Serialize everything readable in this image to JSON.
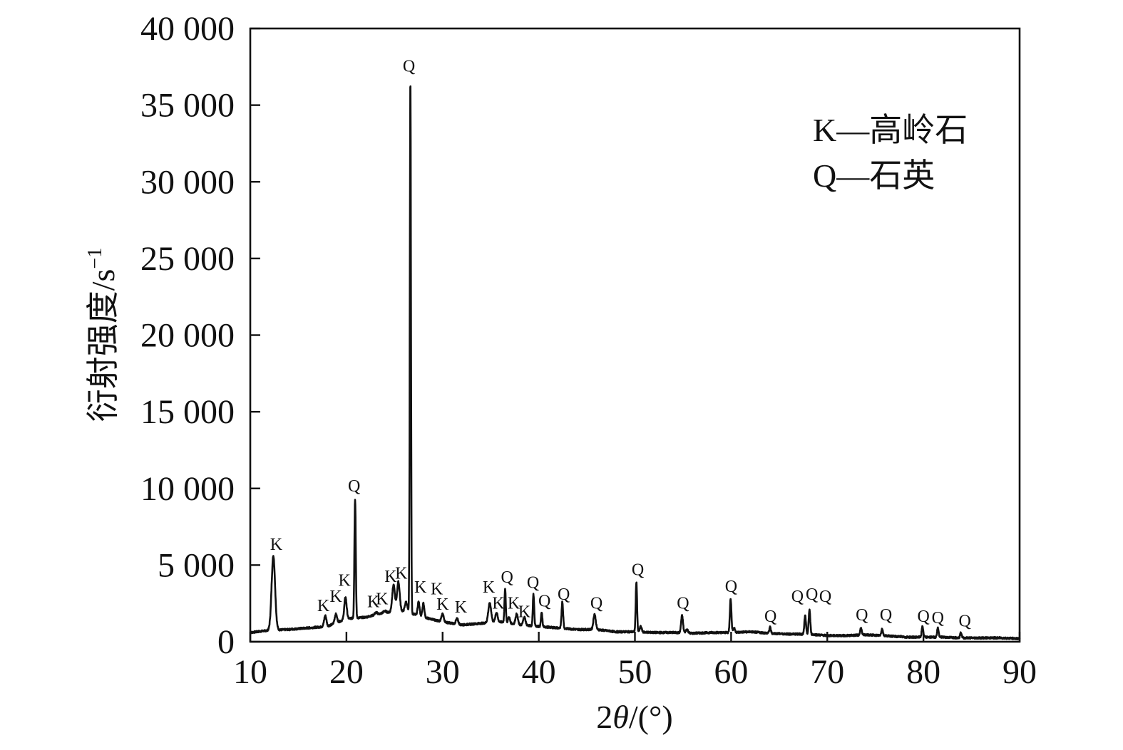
{
  "chart_data": {
    "type": "line",
    "xlabel_prefix": "2",
    "xlabel_symbol": "θ",
    "xlabel_suffix": "/(°)",
    "ylabel_main": "衍射强度/s",
    "ylabel_sup": "−1",
    "xlim": [
      10,
      90
    ],
    "ylim": [
      0,
      40000
    ],
    "x_ticks": [
      10,
      20,
      30,
      40,
      50,
      60,
      70,
      80,
      90
    ],
    "y_ticks": [
      0,
      5000,
      10000,
      15000,
      20000,
      25000,
      30000,
      35000,
      40000
    ],
    "x_tick_labels": [
      "10",
      "20",
      "30",
      "40",
      "50",
      "60",
      "70",
      "80",
      "90"
    ],
    "y_tick_labels": [
      "0",
      "5 000",
      "10 000",
      "15 000",
      "20 000",
      "25 000",
      "30 000",
      "35 000",
      "40 000"
    ],
    "grid": false,
    "legend_position": "top-right",
    "legend": [
      {
        "key": "K",
        "text": "K—高岭石"
      },
      {
        "key": "Q",
        "text": "Q—石英"
      }
    ],
    "line_color": "#111111",
    "baseline": [
      [
        10,
        600
      ],
      [
        12,
        750
      ],
      [
        14,
        800
      ],
      [
        16,
        900
      ],
      [
        18,
        1000
      ],
      [
        20,
        1500
      ],
      [
        22,
        1600
      ],
      [
        24,
        1900
      ],
      [
        26,
        2000
      ],
      [
        28,
        1600
      ],
      [
        30,
        1300
      ],
      [
        32,
        1100
      ],
      [
        34,
        1200
      ],
      [
        36,
        1300
      ],
      [
        38,
        1100
      ],
      [
        40,
        1000
      ],
      [
        42,
        900
      ],
      [
        44,
        800
      ],
      [
        46,
        800
      ],
      [
        48,
        650
      ],
      [
        50,
        650
      ],
      [
        52,
        600
      ],
      [
        54,
        600
      ],
      [
        56,
        550
      ],
      [
        58,
        600
      ],
      [
        60,
        600
      ],
      [
        62,
        650
      ],
      [
        64,
        550
      ],
      [
        66,
        500
      ],
      [
        68,
        500
      ],
      [
        70,
        400
      ],
      [
        72,
        400
      ],
      [
        74,
        450
      ],
      [
        76,
        400
      ],
      [
        78,
        300
      ],
      [
        80,
        300
      ],
      [
        82,
        300
      ],
      [
        84,
        250
      ],
      [
        86,
        250
      ],
      [
        88,
        250
      ],
      [
        90,
        200
      ]
    ],
    "peaks": [
      {
        "x": 12.4,
        "y": 5600,
        "w": 0.18,
        "label": "K"
      },
      {
        "x": 17.8,
        "y": 1700,
        "w": 0.12,
        "label": "K"
      },
      {
        "x": 18.9,
        "y": 1800,
        "w": 0.12,
        "label": "K"
      },
      {
        "x": 19.9,
        "y": 2900,
        "w": 0.12,
        "label": "K"
      },
      {
        "x": 20.9,
        "y": 9300,
        "w": 0.07,
        "label": "Q"
      },
      {
        "x": 23.1,
        "y": 1900,
        "w": 0.15,
        "label": "K"
      },
      {
        "x": 24.0,
        "y": 2000,
        "w": 0.15,
        "label": "K"
      },
      {
        "x": 24.9,
        "y": 3700,
        "w": 0.14,
        "label": "K"
      },
      {
        "x": 25.4,
        "y": 3900,
        "w": 0.14,
        "label": "K"
      },
      {
        "x": 26.65,
        "y": 36700,
        "w": 0.06,
        "label": "Q"
      },
      {
        "x": 27.5,
        "y": 2600,
        "w": 0.1,
        "label": "K"
      },
      {
        "x": 28.0,
        "y": 2500,
        "w": 0.1,
        "label": "K"
      },
      {
        "x": 30.0,
        "y": 1800,
        "w": 0.12,
        "label": "K"
      },
      {
        "x": 31.5,
        "y": 1500,
        "w": 0.12,
        "label": "K"
      },
      {
        "x": 34.9,
        "y": 2500,
        "w": 0.15,
        "label": "K"
      },
      {
        "x": 35.6,
        "y": 1900,
        "w": 0.12,
        "label": "K"
      },
      {
        "x": 36.5,
        "y": 3400,
        "w": 0.07,
        "label": "Q"
      },
      {
        "x": 37.7,
        "y": 1800,
        "w": 0.12,
        "label": "K"
      },
      {
        "x": 38.5,
        "y": 1600,
        "w": 0.12,
        "label": "K"
      },
      {
        "x": 39.45,
        "y": 3100,
        "w": 0.07,
        "label": "Q"
      },
      {
        "x": 40.3,
        "y": 1900,
        "w": 0.07,
        "label": "Q"
      },
      {
        "x": 42.45,
        "y": 2600,
        "w": 0.08,
        "label": "Q"
      },
      {
        "x": 45.8,
        "y": 1800,
        "w": 0.12,
        "label": "Q"
      },
      {
        "x": 50.15,
        "y": 3900,
        "w": 0.07,
        "label": "Q"
      },
      {
        "x": 54.9,
        "y": 1700,
        "w": 0.1,
        "label": "Q"
      },
      {
        "x": 59.95,
        "y": 2800,
        "w": 0.08,
        "label": "Q"
      },
      {
        "x": 64.05,
        "y": 950,
        "w": 0.08,
        "label": "Q"
      },
      {
        "x": 67.7,
        "y": 1700,
        "w": 0.08,
        "label": "Q"
      },
      {
        "x": 68.15,
        "y": 2100,
        "w": 0.08,
        "label": "Q"
      },
      {
        "x": 73.5,
        "y": 900,
        "w": 0.08,
        "label": "Q"
      },
      {
        "x": 75.7,
        "y": 850,
        "w": 0.08,
        "label": "Q"
      },
      {
        "x": 79.9,
        "y": 1000,
        "w": 0.08,
        "label": "Q"
      },
      {
        "x": 81.5,
        "y": 900,
        "w": 0.08,
        "label": "Q"
      },
      {
        "x": 83.9,
        "y": 600,
        "w": 0.08,
        "label": "Q"
      }
    ],
    "extra_bumps": [
      {
        "x": 26.2,
        "y": 2600,
        "w": 0.12
      },
      {
        "x": 36.9,
        "y": 1600,
        "w": 0.1
      },
      {
        "x": 45.2,
        "y": 700,
        "w": 0.4
      },
      {
        "x": 50.6,
        "y": 1000,
        "w": 0.1
      },
      {
        "x": 55.4,
        "y": 800,
        "w": 0.12
      },
      {
        "x": 60.3,
        "y": 900,
        "w": 0.1
      },
      {
        "x": 61.8,
        "y": 500,
        "w": 0.3
      },
      {
        "x": 62.3,
        "y": 500,
        "w": 0.25
      },
      {
        "x": 77.6,
        "y": 350,
        "w": 0.1
      }
    ],
    "annotations": [
      {
        "text": "K",
        "x": 12.7,
        "y": 6000
      },
      {
        "text": "K",
        "x": 17.6,
        "y": 2000
      },
      {
        "text": "K",
        "x": 18.9,
        "y": 2600
      },
      {
        "text": "K",
        "x": 19.8,
        "y": 3650
      },
      {
        "text": "Q",
        "x": 20.8,
        "y": 9800
      },
      {
        "text": "K",
        "x": 22.8,
        "y": 2250
      },
      {
        "text": "K",
        "x": 23.7,
        "y": 2450
      },
      {
        "text": "K",
        "x": 24.6,
        "y": 3900
      },
      {
        "text": "K",
        "x": 25.7,
        "y": 4100
      },
      {
        "text": "Q",
        "x": 26.5,
        "y": 37200
      },
      {
        "text": "K",
        "x": 27.7,
        "y": 3200
      },
      {
        "text": "K",
        "x": 29.4,
        "y": 3100
      },
      {
        "text": "K",
        "x": 30.0,
        "y": 2100
      },
      {
        "text": "K",
        "x": 31.9,
        "y": 1900
      },
      {
        "text": "K",
        "x": 34.8,
        "y": 3200
      },
      {
        "text": "K",
        "x": 35.8,
        "y": 2150
      },
      {
        "text": "Q",
        "x": 36.7,
        "y": 3850
      },
      {
        "text": "K",
        "x": 37.4,
        "y": 2150
      },
      {
        "text": "K",
        "x": 38.5,
        "y": 1600
      },
      {
        "text": "Q",
        "x": 39.4,
        "y": 3500
      },
      {
        "text": "Q",
        "x": 40.6,
        "y": 2300
      },
      {
        "text": "Q",
        "x": 42.6,
        "y": 2750
      },
      {
        "text": "Q",
        "x": 46.0,
        "y": 2150
      },
      {
        "text": "Q",
        "x": 50.3,
        "y": 4350
      },
      {
        "text": "Q",
        "x": 55.0,
        "y": 2150
      },
      {
        "text": "Q",
        "x": 60.0,
        "y": 3250
      },
      {
        "text": "Q",
        "x": 64.1,
        "y": 1300
      },
      {
        "text": "Q",
        "x": 66.9,
        "y": 2600
      },
      {
        "text": "Q",
        "x": 68.4,
        "y": 2750
      },
      {
        "text": "Q",
        "x": 69.8,
        "y": 2600
      },
      {
        "text": "Q",
        "x": 73.6,
        "y": 1400
      },
      {
        "text": "Q",
        "x": 76.1,
        "y": 1400
      },
      {
        "text": "Q",
        "x": 80.0,
        "y": 1300
      },
      {
        "text": "Q",
        "x": 81.5,
        "y": 1200
      },
      {
        "text": "Q",
        "x": 84.3,
        "y": 1000
      }
    ]
  }
}
